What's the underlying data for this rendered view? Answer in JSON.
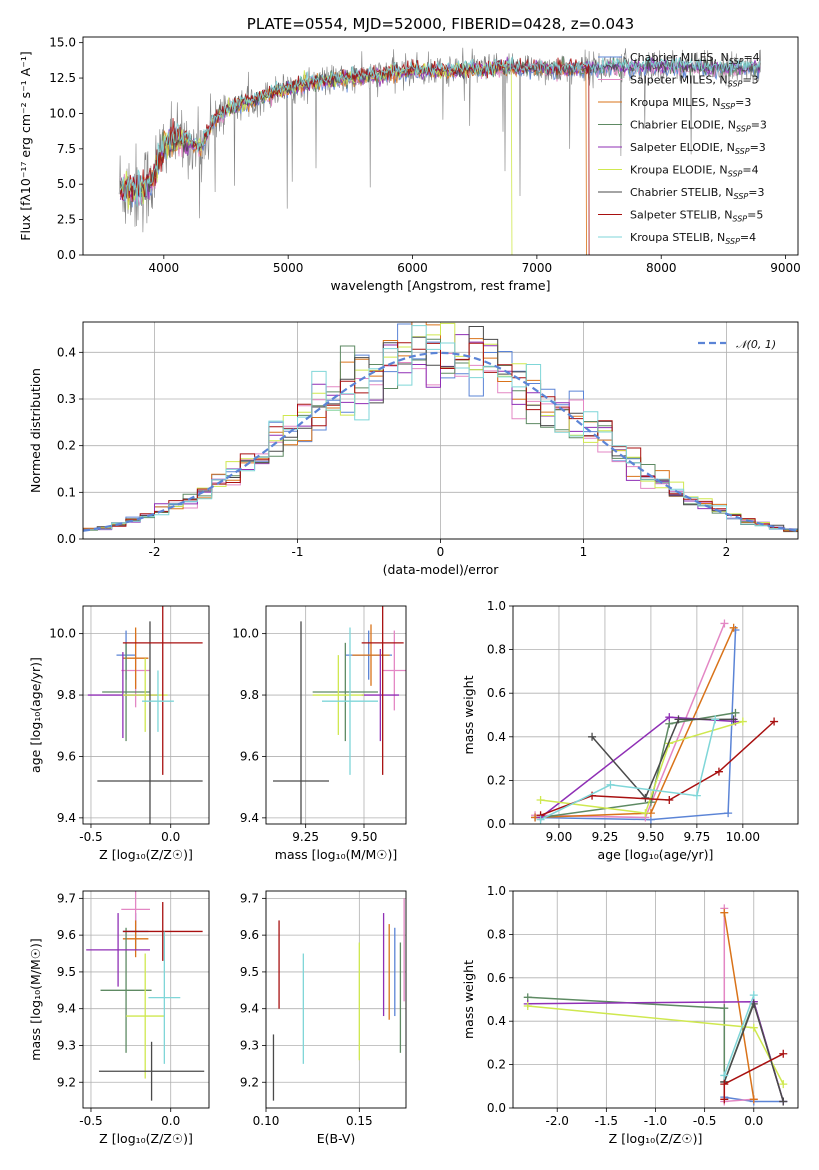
{
  "colors": {
    "Chabrier MILES": "#5b84d6",
    "Salpeter MILES": "#e387c4",
    "Kroupa MILES": "#d9731a",
    "Chabrier ELODIE": "#5e8a63",
    "Salpeter ELODIE": "#8f2fb5",
    "Kroupa ELODIE": "#cfe84f",
    "Chabrier STELIB": "#4a4a4a",
    "Salpeter STELIB": "#a81010",
    "Kroupa STELIB": "#7fd6d8",
    "data": "#808080",
    "normal": "#5b84d6",
    "grid": "#b0b0b0"
  },
  "chart_data": [
    {
      "id": "spectrum",
      "type": "line",
      "title": "PLATE=0554, MJD=52000, FIBERID=0428, z=0.043",
      "xlabel": "wavelength [Angstrom, rest frame]",
      "ylabel": "Flux [fλ10⁻¹⁷ erg cm⁻² s⁻¹ A⁻¹]",
      "xlim": [
        3350,
        9100
      ],
      "ylim": [
        0,
        15.4
      ],
      "xticks": [
        "4000",
        "5000",
        "6000",
        "7000",
        "8000",
        "9000"
      ],
      "yticks": [
        "0.0",
        "2.5",
        "5.0",
        "7.5",
        "10.0",
        "12.5",
        "15.0"
      ],
      "grid": false,
      "legend_position": "top-right",
      "legend": [
        {
          "name": "Chabrier MILES",
          "nssp": "4"
        },
        {
          "name": "Salpeter MILES",
          "nssp": "3"
        },
        {
          "name": "Kroupa MILES",
          "nssp": "3"
        },
        {
          "name": "Chabrier ELODIE",
          "nssp": "3"
        },
        {
          "name": "Salpeter ELODIE",
          "nssp": "3"
        },
        {
          "name": "Kroupa ELODIE",
          "nssp": "4"
        },
        {
          "name": "Chabrier STELIB",
          "nssp": "3"
        },
        {
          "name": "Salpeter STELIB",
          "nssp": "5"
        },
        {
          "name": "Kroupa STELIB",
          "nssp": "4"
        }
      ],
      "continuum": {
        "x": [
          3650,
          3800,
          3900,
          4000,
          4100,
          4200,
          4300,
          4400,
          4500,
          4600,
          4800,
          5000,
          5200,
          5400,
          5600,
          5800,
          6000,
          6200,
          6400,
          6600,
          6800,
          7000,
          7200,
          7400,
          7600,
          7800,
          8000,
          8200,
          8400,
          8600,
          8800
        ],
        "y": [
          4.8,
          4.6,
          5.2,
          7.6,
          8.2,
          8.0,
          7.6,
          9.5,
          10.2,
          10.6,
          11.2,
          11.8,
          12.2,
          12.4,
          12.6,
          12.8,
          13.0,
          13.0,
          13.1,
          13.1,
          13.2,
          13.2,
          13.1,
          13.2,
          13.3,
          13.3,
          13.4,
          13.3,
          13.2,
          13.2,
          13.3
        ]
      },
      "dropouts": [
        {
          "series": "Kroupa ELODIE",
          "x": 6800
        },
        {
          "series": "Kroupa MILES",
          "x": 7400
        },
        {
          "series": "Salpeter STELIB",
          "x": 7420
        }
      ]
    },
    {
      "id": "residuals",
      "type": "step",
      "xlabel": "(data-model)/error",
      "ylabel": "Normed distribution",
      "xlim": [
        -2.5,
        2.5
      ],
      "ylim": [
        0,
        0.465
      ],
      "xticks": [
        "-2",
        "-1",
        "0",
        "1",
        "2"
      ],
      "yticks": [
        "0.0",
        "0.1",
        "0.2",
        "0.3",
        "0.4"
      ],
      "grid": true,
      "bin_width": 0.1,
      "legend_position": "top-right",
      "legend": [
        "𝒩(0, 1)"
      ]
    },
    {
      "id": "age-vs-Z",
      "type": "errorbar",
      "xlabel": "Z [log₁₀(Z/Z☉)]",
      "ylabel": "age  [log₁₀(age/yr)]",
      "xlim": [
        -0.55,
        0.24
      ],
      "ylim": [
        9.38,
        10.09
      ],
      "xticks": [
        "-0.5",
        "0.0"
      ],
      "yticks": [
        "9.4",
        "9.6",
        "9.8",
        "10.0"
      ],
      "grid": true,
      "points": [
        {
          "series": "Chabrier MILES",
          "x": -0.28,
          "y": 9.93,
          "xerr": 0.06,
          "yerr": 0.08
        },
        {
          "series": "Salpeter MILES",
          "x": -0.22,
          "y": 9.88,
          "xerr": 0.09,
          "yerr": 0.12
        },
        {
          "series": "Kroupa MILES",
          "x": -0.22,
          "y": 9.92,
          "xerr": 0.08,
          "yerr": 0.1
        },
        {
          "series": "Chabrier ELODIE",
          "x": -0.28,
          "y": 9.81,
          "xerr": 0.15,
          "yerr": 0.16
        },
        {
          "series": "Salpeter ELODIE",
          "x": -0.3,
          "y": 9.8,
          "xerr": 0.22,
          "yerr": 0.14
        },
        {
          "series": "Kroupa ELODIE",
          "x": -0.16,
          "y": 9.8,
          "xerr": 0.14,
          "yerr": 0.12
        },
        {
          "series": "Chabrier STELIB",
          "x": -0.13,
          "y": 9.52,
          "xerr": 0.33,
          "yerr": 0.52
        },
        {
          "series": "Salpeter STELIB",
          "x": -0.05,
          "y": 9.97,
          "xerr": 0.25,
          "yerr": 0.43
        },
        {
          "series": "Kroupa STELIB",
          "x": -0.08,
          "y": 9.78,
          "xerr": 0.1,
          "yerr": 0.1
        }
      ]
    },
    {
      "id": "age-vs-mass",
      "type": "errorbar",
      "xlabel": "mass [log₁₀(M/M☉)]",
      "ylabel": "",
      "xlim": [
        9.08,
        9.68
      ],
      "ylim": [
        9.38,
        10.09
      ],
      "xticks": [
        "9.25",
        "9.50"
      ],
      "yticks": [
        "9.4",
        "9.6",
        "9.8",
        "10.0"
      ],
      "grid": true,
      "points": [
        {
          "series": "Chabrier MILES",
          "x": 9.52,
          "y": 9.93,
          "xerr": 0.1,
          "yerr": 0.08
        },
        {
          "series": "Salpeter MILES",
          "x": 9.63,
          "y": 9.88,
          "xerr": 0.05,
          "yerr": 0.13
        },
        {
          "series": "Kroupa MILES",
          "x": 9.53,
          "y": 9.93,
          "xerr": 0.08,
          "yerr": 0.1
        },
        {
          "series": "Chabrier ELODIE",
          "x": 9.42,
          "y": 9.81,
          "xerr": 0.14,
          "yerr": 0.16
        },
        {
          "series": "Salpeter ELODIE",
          "x": 9.57,
          "y": 9.8,
          "xerr": 0.08,
          "yerr": 0.15
        },
        {
          "series": "Kroupa ELODIE",
          "x": 9.39,
          "y": 9.8,
          "xerr": 0.11,
          "yerr": 0.13
        },
        {
          "series": "Chabrier STELIB",
          "x": 9.23,
          "y": 9.52,
          "xerr": 0.12,
          "yerr": 0.52
        },
        {
          "series": "Salpeter STELIB",
          "x": 9.58,
          "y": 9.97,
          "xerr": 0.09,
          "yerr": 0.43
        },
        {
          "series": "Kroupa STELIB",
          "x": 9.44,
          "y": 9.78,
          "xerr": 0.12,
          "yerr": 0.24
        }
      ]
    },
    {
      "id": "mass-weight-vs-age",
      "type": "line",
      "xlabel": "age  [log₁₀(age/yr)]",
      "ylabel": "mass weight",
      "xlim": [
        8.75,
        10.3
      ],
      "ylim": [
        0,
        1.0
      ],
      "xticks": [
        "9.00",
        "9.25",
        "9.50",
        "9.75",
        "10.00"
      ],
      "yticks": [
        "0.0",
        "0.2",
        "0.4",
        "0.6",
        "0.8",
        "1.0"
      ],
      "grid": true,
      "series": [
        {
          "name": "Chabrier MILES",
          "x": [
            8.87,
            9.5,
            9.92,
            9.96
          ],
          "y": [
            0.03,
            0.02,
            0.05,
            0.89
          ]
        },
        {
          "name": "Salpeter MILES",
          "x": [
            8.87,
            9.47,
            9.9
          ],
          "y": [
            0.04,
            0.03,
            0.92
          ]
        },
        {
          "name": "Kroupa MILES",
          "x": [
            8.87,
            9.5,
            9.95
          ],
          "y": [
            0.03,
            0.05,
            0.9
          ]
        },
        {
          "name": "Chabrier ELODIE",
          "x": [
            8.9,
            9.5,
            9.6,
            9.96
          ],
          "y": [
            0.03,
            0.1,
            0.46,
            0.51
          ]
        },
        {
          "name": "Salpeter ELODIE",
          "x": [
            8.9,
            9.6,
            9.96
          ],
          "y": [
            0.03,
            0.49,
            0.47
          ]
        },
        {
          "name": "Kroupa ELODIE",
          "x": [
            8.9,
            9.47,
            9.6,
            10.0
          ],
          "y": [
            0.11,
            0.05,
            0.37,
            0.47
          ]
        },
        {
          "name": "Chabrier STELIB",
          "x": [
            9.18,
            9.47,
            9.65,
            9.95
          ],
          "y": [
            0.4,
            0.12,
            0.48,
            0.48
          ]
        },
        {
          "name": "Salpeter STELIB",
          "x": [
            8.9,
            9.18,
            9.6,
            9.87,
            10.17
          ],
          "y": [
            0.04,
            0.13,
            0.11,
            0.24,
            0.47
          ]
        },
        {
          "name": "Kroupa STELIB",
          "x": [
            8.9,
            9.28,
            9.75,
            9.85
          ],
          "y": [
            0.02,
            0.18,
            0.13,
            0.48
          ]
        }
      ]
    },
    {
      "id": "mass-vs-Z",
      "type": "errorbar",
      "xlabel": "Z [log₁₀(Z/Z☉)]",
      "ylabel": "mass [log₁₀(M/M☉)]",
      "xlim": [
        -0.55,
        0.24
      ],
      "ylim": [
        9.13,
        9.72
      ],
      "xticks": [
        "-0.5",
        "0.0"
      ],
      "yticks": [
        "9.2",
        "9.3",
        "9.4",
        "9.5",
        "9.6",
        "9.7"
      ],
      "grid": true,
      "points": [
        {
          "series": "Chabrier MILES",
          "x": -0.22,
          "y": 9.61,
          "xerr": 0.08,
          "yerr": 0.05
        },
        {
          "series": "Salpeter MILES",
          "x": -0.22,
          "y": 9.67,
          "xerr": 0.09,
          "yerr": 0.05
        },
        {
          "series": "Kroupa MILES",
          "x": -0.22,
          "y": 9.59,
          "xerr": 0.08,
          "yerr": 0.05
        },
        {
          "series": "Chabrier ELODIE",
          "x": -0.28,
          "y": 9.45,
          "xerr": 0.16,
          "yerr": 0.17
        },
        {
          "series": "Salpeter ELODIE",
          "x": -0.33,
          "y": 9.56,
          "xerr": 0.2,
          "yerr": 0.1
        },
        {
          "series": "Kroupa ELODIE",
          "x": -0.16,
          "y": 9.38,
          "xerr": 0.12,
          "yerr": 0.17
        },
        {
          "series": "Chabrier STELIB",
          "x": -0.12,
          "y": 9.23,
          "xerr": 0.33,
          "yerr": 0.08
        },
        {
          "series": "Salpeter STELIB",
          "x": -0.05,
          "y": 9.61,
          "xerr": 0.25,
          "yerr": 0.08
        },
        {
          "series": "Kroupa STELIB",
          "x": -0.04,
          "y": 9.43,
          "xerr": 0.1,
          "yerr": 0.18
        }
      ]
    },
    {
      "id": "mass-vs-ebv",
      "type": "errorbar",
      "xlabel": "E(B-V)",
      "ylabel": "",
      "xlim": [
        0.1,
        0.175
      ],
      "ylim": [
        9.13,
        9.72
      ],
      "xticks": [
        "0.10",
        "0.15"
      ],
      "yticks": [
        "9.2",
        "9.3",
        "9.4",
        "9.5",
        "9.6",
        "9.7"
      ],
      "grid": true,
      "points": [
        {
          "series": "Chabrier MILES",
          "x": 0.169,
          "y": 9.5,
          "xerr": 0,
          "yerr": 0.12
        },
        {
          "series": "Salpeter MILES",
          "x": 0.174,
          "y": 9.56,
          "xerr": 0,
          "yerr": 0.14
        },
        {
          "series": "Kroupa MILES",
          "x": 0.166,
          "y": 9.5,
          "xerr": 0,
          "yerr": 0.13
        },
        {
          "series": "Chabrier ELODIE",
          "x": 0.172,
          "y": 9.43,
          "xerr": 0,
          "yerr": 0.15
        },
        {
          "series": "Salpeter ELODIE",
          "x": 0.163,
          "y": 9.52,
          "xerr": 0,
          "yerr": 0.14
        },
        {
          "series": "Kroupa ELODIE",
          "x": 0.15,
          "y": 9.42,
          "xerr": 0,
          "yerr": 0.16
        },
        {
          "series": "Chabrier STELIB",
          "x": 0.104,
          "y": 9.24,
          "xerr": 0,
          "yerr": 0.09
        },
        {
          "series": "Salpeter STELIB",
          "x": 0.107,
          "y": 9.52,
          "xerr": 0,
          "yerr": 0.12
        },
        {
          "series": "Kroupa STELIB",
          "x": 0.12,
          "y": 9.4,
          "xerr": 0,
          "yerr": 0.15
        }
      ]
    },
    {
      "id": "mass-weight-vs-Z",
      "type": "line",
      "xlabel": "Z [log₁₀(Z/Z☉)]",
      "ylabel": "mass weight",
      "xlim": [
        -2.45,
        0.45
      ],
      "ylim": [
        0,
        1.0
      ],
      "xticks": [
        "-2.0",
        "-1.5",
        "-1.0",
        "-0.5",
        "0.0"
      ],
      "yticks": [
        "0.0",
        "0.2",
        "0.4",
        "0.6",
        "0.8",
        "1.0"
      ],
      "grid": true,
      "series": [
        {
          "name": "Chabrier MILES",
          "x": [
            -0.3,
            0.0,
            0.3
          ],
          "y": [
            0.05,
            0.03,
            0.03
          ]
        },
        {
          "name": "Salpeter MILES",
          "x": [
            -0.3,
            -0.3,
            0.0
          ],
          "y": [
            0.92,
            0.03,
            0.04
          ]
        },
        {
          "name": "Kroupa MILES",
          "x": [
            -0.3,
            0.0
          ],
          "y": [
            0.9,
            0.04
          ]
        },
        {
          "name": "Chabrier ELODIE",
          "x": [
            -2.3,
            -0.3,
            -0.3,
            0.0,
            0.3
          ],
          "y": [
            0.51,
            0.46,
            0.12,
            0.49,
            0.03
          ]
        },
        {
          "name": "Salpeter ELODIE",
          "x": [
            -2.3,
            0.0,
            0.3
          ],
          "y": [
            0.48,
            0.49,
            0.03
          ]
        },
        {
          "name": "Kroupa ELODIE",
          "x": [
            -2.3,
            0.0,
            0.3
          ],
          "y": [
            0.47,
            0.37,
            0.11
          ]
        },
        {
          "name": "Chabrier STELIB",
          "x": [
            -0.3,
            0.0,
            0.3
          ],
          "y": [
            0.12,
            0.48,
            0.03
          ]
        },
        {
          "name": "Salpeter STELIB",
          "x": [
            -0.3,
            -0.3,
            0.3
          ],
          "y": [
            0.04,
            0.11,
            0.25
          ]
        },
        {
          "name": "Kroupa STELIB",
          "x": [
            -0.3,
            0.0
          ],
          "y": [
            0.15,
            0.52
          ]
        }
      ]
    }
  ]
}
